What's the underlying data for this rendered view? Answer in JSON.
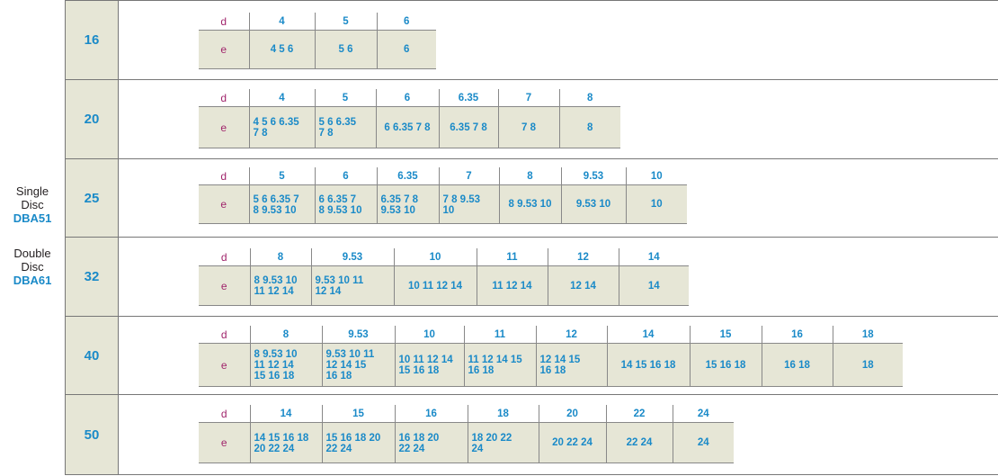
{
  "series": {
    "single": {
      "line1": "Single",
      "line2": "Disc",
      "model": "DBA51"
    },
    "double": {
      "line1": "Double",
      "line2": "Disc",
      "model": "DBA61"
    }
  },
  "row_labels": {
    "d": "d",
    "e": "e"
  },
  "sizes": [
    {
      "size": "16",
      "d": [
        "4",
        "5",
        "6"
      ],
      "e": [
        [
          "4 5 6"
        ],
        [
          "5 6"
        ],
        [
          "6"
        ]
      ]
    },
    {
      "size": "20",
      "d": [
        "4",
        "5",
        "6",
        "6.35",
        "7",
        "8"
      ],
      "e": [
        [
          "4 5 6 6.35",
          "7 8"
        ],
        [
          "5 6 6.35",
          "7 8"
        ],
        [
          "6 6.35 7 8"
        ],
        [
          "6.35 7 8"
        ],
        [
          "7 8"
        ],
        [
          "8"
        ]
      ]
    },
    {
      "size": "25",
      "d": [
        "5",
        "6",
        "6.35",
        "7",
        "8",
        "9.53",
        "10"
      ],
      "e": [
        [
          "5 6 6.35 7",
          "8 9.53 10"
        ],
        [
          "6 6.35 7",
          "8 9.53 10"
        ],
        [
          "6.35 7 8",
          "9.53 10"
        ],
        [
          "7 8 9.53",
          "10"
        ],
        [
          "8 9.53 10"
        ],
        [
          "9.53 10"
        ],
        [
          "10"
        ]
      ]
    },
    {
      "size": "32",
      "d": [
        "8",
        "9.53",
        "10",
        "11",
        "12",
        "14"
      ],
      "e": [
        [
          "8 9.53 10",
          "11 12 14"
        ],
        [
          "9.53 10 11",
          "12 14"
        ],
        [
          "10 11 12 14"
        ],
        [
          "11 12 14"
        ],
        [
          "12 14"
        ],
        [
          "14"
        ]
      ]
    },
    {
      "size": "40",
      "d": [
        "8",
        "9.53",
        "10",
        "11",
        "12",
        "14",
        "15",
        "16",
        "18"
      ],
      "e": [
        [
          "8 9.53 10",
          "11 12 14",
          "15 16 18"
        ],
        [
          "9.53 10 11",
          "12 14 15",
          "16 18"
        ],
        [
          "10 11 12 14",
          "15 16 18"
        ],
        [
          "11 12 14 15",
          "16 18"
        ],
        [
          "12 14 15",
          "16 18"
        ],
        [
          "14 15 16 18"
        ],
        [
          "15 16 18"
        ],
        [
          "16 18"
        ],
        [
          "18"
        ]
      ]
    },
    {
      "size": "50",
      "d": [
        "14",
        "15",
        "16",
        "18",
        "20",
        "22",
        "24"
      ],
      "e": [
        [
          "14 15 16 18",
          "20 22 24"
        ],
        [
          "15 16 18 20",
          "22 24"
        ],
        [
          "16 18 20",
          "22 24"
        ],
        [
          "18 20 22",
          "24"
        ],
        [
          "20 22 24"
        ],
        [
          "22 24"
        ],
        [
          "24"
        ]
      ]
    }
  ]
}
